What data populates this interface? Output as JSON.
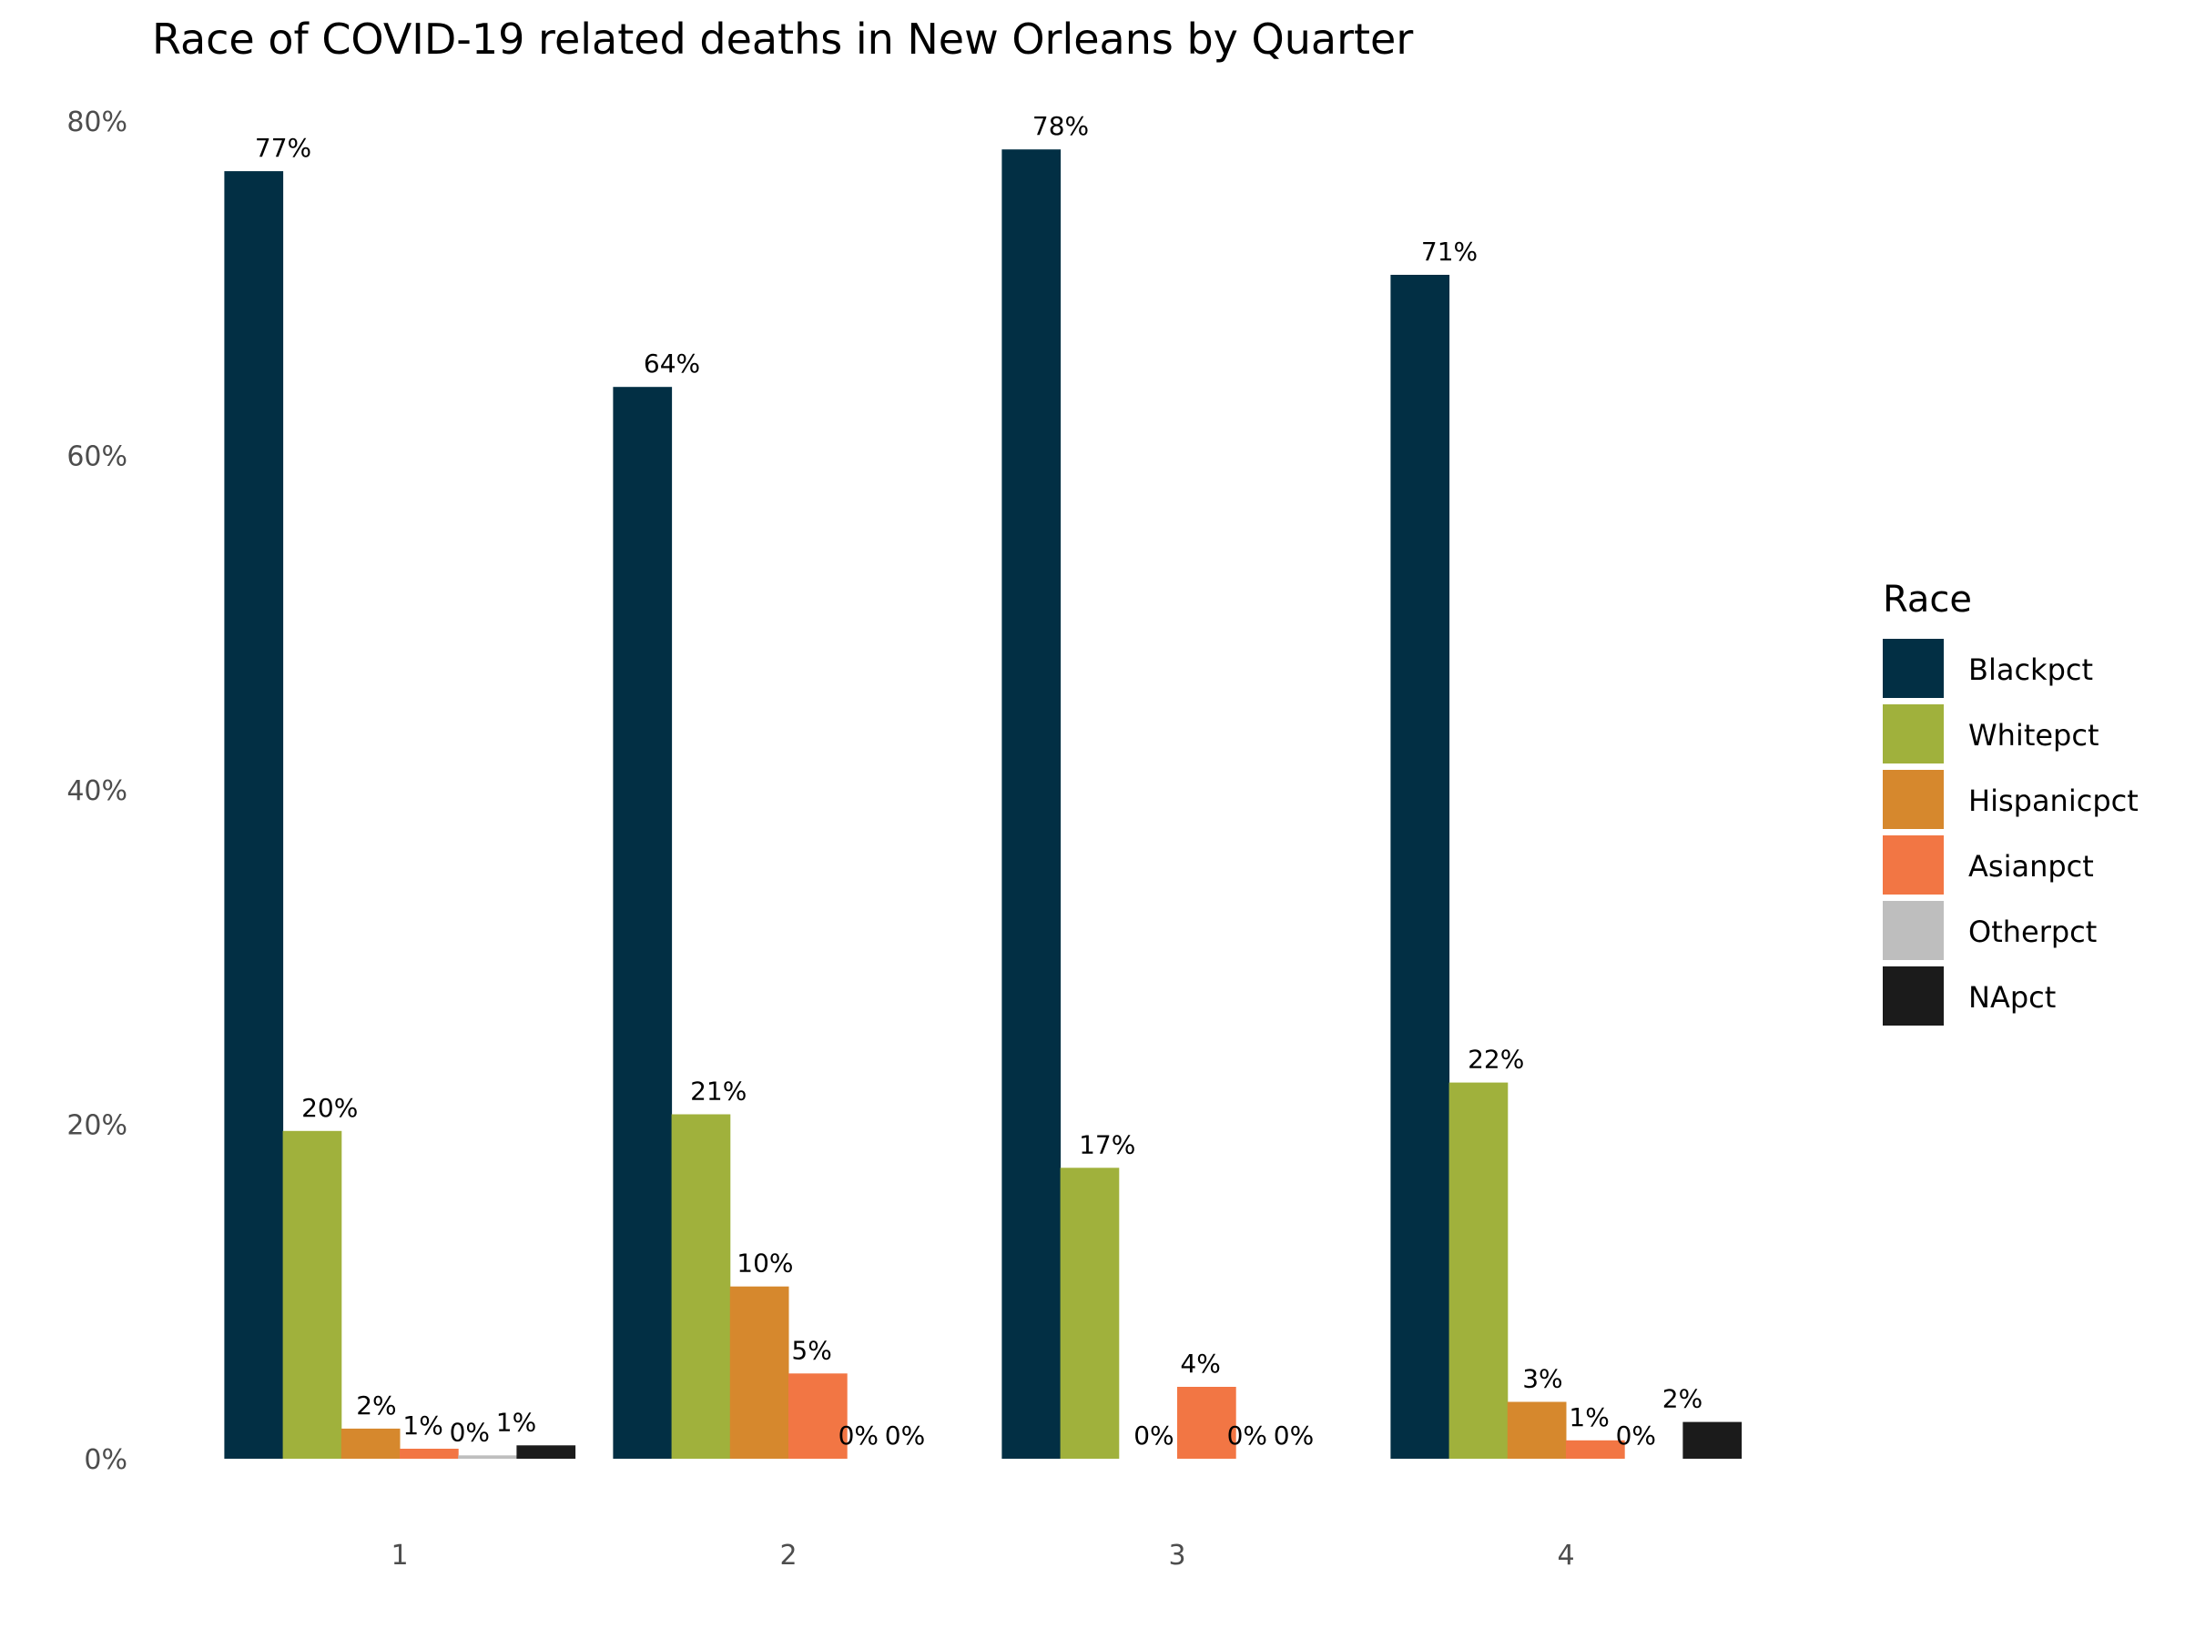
{
  "chart_data": {
    "type": "bar",
    "title": "Race of COVID-19 related deaths in New Orleans by Quarter",
    "xlabel": "",
    "ylabel": "",
    "ylim": [
      0,
      80
    ],
    "grid": false,
    "y_ticks": [
      0,
      20,
      40,
      60,
      80
    ],
    "y_tick_labels": [
      "0%",
      "20%",
      "40%",
      "60%",
      "80%"
    ],
    "categories": [
      "1",
      "2",
      "3",
      "4"
    ],
    "legend": {
      "title": "Race",
      "position": "right"
    },
    "series": [
      {
        "name": "Blackpct",
        "color": "#022f44",
        "values": [
          77.0,
          64.1,
          78.3,
          70.8
        ],
        "labels": [
          "77%",
          "64%",
          "78%",
          "71%"
        ]
      },
      {
        "name": "Whitepct",
        "color": "#a0b13c",
        "values": [
          19.6,
          20.6,
          17.4,
          22.5
        ],
        "labels": [
          "20%",
          "21%",
          "17%",
          "22%"
        ]
      },
      {
        "name": "Hispanicpct",
        "color": "#d6882d",
        "values": [
          1.8,
          10.3,
          null,
          3.4
        ],
        "labels": [
          "2%",
          "10%",
          "0%",
          "3%"
        ]
      },
      {
        "name": "Asianpct",
        "color": "#f27644",
        "values": [
          0.6,
          5.1,
          4.3,
          1.1
        ],
        "labels": [
          "1%",
          "5%",
          "4%",
          "1%"
        ]
      },
      {
        "name": "Otherpct",
        "color": "#bebebe",
        "values": [
          0.2,
          null,
          null,
          null
        ],
        "labels": [
          "0%",
          "0%",
          "0%",
          "0%"
        ]
      },
      {
        "name": "NApct",
        "color": "#1b1b1b",
        "values": [
          0.8,
          null,
          null,
          2.2
        ],
        "labels": [
          "1%",
          "0%",
          "0%",
          "2%"
        ]
      }
    ]
  }
}
